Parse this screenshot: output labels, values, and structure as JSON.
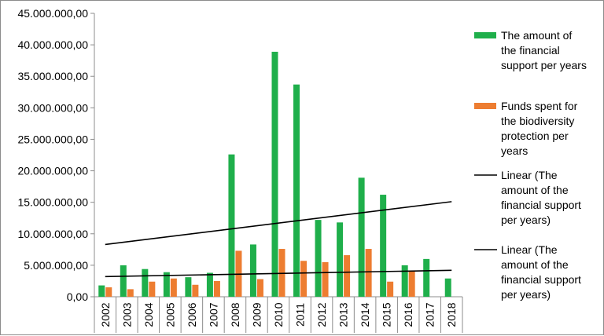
{
  "chart_data": {
    "type": "bar",
    "categories": [
      "2002",
      "2003",
      "2004",
      "2005",
      "2006",
      "2007",
      "2008",
      "2009",
      "2010",
      "2011",
      "2012",
      "2013",
      "2014",
      "2015",
      "2016",
      "2017",
      "2018"
    ],
    "series": [
      {
        "name": "The amount of the financial support per years",
        "color": "#1faf4b",
        "values": [
          1800000,
          5000000,
          4400000,
          3900000,
          3100000,
          3800000,
          22600000,
          8300000,
          38900000,
          33700000,
          12200000,
          11800000,
          18900000,
          16200000,
          5000000,
          6000000,
          2900000
        ]
      },
      {
        "name": "Funds spent for the biodiversity protection per years",
        "color": "#ed7d31",
        "values": [
          1500000,
          1200000,
          2400000,
          2900000,
          1900000,
          2500000,
          7300000,
          2800000,
          7600000,
          5700000,
          5500000,
          6600000,
          7600000,
          2400000,
          4000000,
          0,
          0
        ]
      }
    ],
    "trendlines": [
      {
        "name": "Linear (The amount of the financial support per years)",
        "color": "#000000",
        "start": 8300000,
        "end": 15100000
      },
      {
        "name": "Linear (The amount of the financial support per years)",
        "color": "#000000",
        "start": 3200000,
        "end": 4200000
      }
    ],
    "ylim": [
      0,
      45000000
    ],
    "yticks": [
      {
        "value": 0,
        "label": "0,00"
      },
      {
        "value": 5000000,
        "label": "5.000.000,00"
      },
      {
        "value": 10000000,
        "label": "10.000.000,00"
      },
      {
        "value": 15000000,
        "label": "15.000.000,00"
      },
      {
        "value": 20000000,
        "label": "20.000.000,00"
      },
      {
        "value": 25000000,
        "label": "25.000.000,00"
      },
      {
        "value": 30000000,
        "label": "30.000.000,00"
      },
      {
        "value": 35000000,
        "label": "35.000.000,00"
      },
      {
        "value": 40000000,
        "label": "40.000.000,00"
      },
      {
        "value": 45000000,
        "label": "45.000.000,00"
      }
    ],
    "grid": false,
    "legend_position": "right",
    "legend": [
      {
        "kind": "bar",
        "color": "#1faf4b",
        "lines": [
          "The amount of",
          "the financial",
          "support per years"
        ]
      },
      {
        "kind": "bar",
        "color": "#ed7d31",
        "lines": [
          "Funds spent for",
          "the biodiversity",
          "protection per",
          "years"
        ]
      },
      {
        "kind": "line",
        "color": "#000000",
        "lines": [
          "Linear (The",
          "amount of the",
          "financial support",
          "per years)"
        ]
      },
      {
        "kind": "line",
        "color": "#000000",
        "lines": [
          "Linear (The",
          "amount of the",
          "financial support",
          "per years)"
        ]
      }
    ]
  }
}
